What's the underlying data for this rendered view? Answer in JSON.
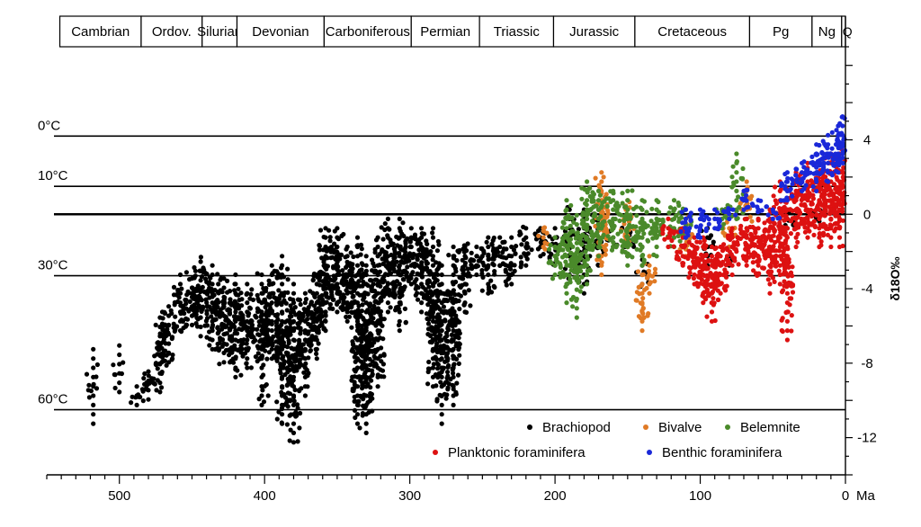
{
  "chart_data": {
    "type": "scatter",
    "xlabel_unit": "Ma",
    "ylabel": "δ18O‰",
    "xlim": [
      550,
      0
    ],
    "ylim": [
      -14,
      9
    ],
    "x_ticks": [
      500,
      400,
      300,
      200,
      100,
      0
    ],
    "y_ticks": [
      4,
      0,
      -4,
      -8,
      -12
    ],
    "periods": [
      {
        "name": "Cambrian",
        "start": 541,
        "end": 485
      },
      {
        "name": "Ordov.",
        "start": 485,
        "end": 443
      },
      {
        "name": "Silurian",
        "start": 443,
        "end": 419
      },
      {
        "name": "Devonian",
        "start": 419,
        "end": 359
      },
      {
        "name": "Carboniferous",
        "start": 359,
        "end": 299
      },
      {
        "name": "Permian",
        "start": 299,
        "end": 252
      },
      {
        "name": "Triassic",
        "start": 252,
        "end": 201
      },
      {
        "name": "Jurassic",
        "start": 201,
        "end": 145
      },
      {
        "name": "Cretaceous",
        "start": 145,
        "end": 66
      },
      {
        "name": "Pg",
        "start": 66,
        "end": 23
      },
      {
        "name": "Ng",
        "start": 23,
        "end": 2.6
      },
      {
        "name": "Q",
        "start": 2.6,
        "end": 0
      }
    ],
    "temperature_lines": [
      {
        "label": "0°C",
        "y": 4.2
      },
      {
        "label": "10°C",
        "y": 1.5
      },
      {
        "label": "",
        "y": 0
      },
      {
        "label": "30°C",
        "y": -3.3
      },
      {
        "label": "60°C",
        "y": -10.5
      }
    ],
    "series": [
      {
        "name": "Brachiopod",
        "color": "#000000",
        "bands": [
          [
            518,
            -11.5,
            -7.2,
            1
          ],
          [
            500,
            -9.8,
            -7.0,
            1
          ],
          [
            488,
            -10.5,
            -8.8,
            2
          ],
          [
            480,
            -10.2,
            -8.0,
            3
          ],
          [
            472,
            -9.8,
            -5.5,
            4
          ],
          [
            466,
            -8.2,
            -4.5,
            4
          ],
          [
            458,
            -6.5,
            -3.2,
            4
          ],
          [
            450,
            -6.2,
            -3.0,
            4
          ],
          [
            444,
            -6.8,
            -2.2,
            5
          ],
          [
            436,
            -7.5,
            -2.5,
            5
          ],
          [
            428,
            -8.2,
            -3.0,
            5
          ],
          [
            420,
            -9.0,
            -3.2,
            5
          ],
          [
            412,
            -8.5,
            -3.5,
            5
          ],
          [
            402,
            -10.5,
            -2.8,
            4
          ],
          [
            395,
            -8.0,
            -2.5,
            5
          ],
          [
            388,
            -11.5,
            -2.2,
            5
          ],
          [
            380,
            -12.5,
            -3.5,
            5
          ],
          [
            372,
            -10.0,
            -4.0,
            5
          ],
          [
            364,
            -8.0,
            -3.0,
            5
          ],
          [
            358,
            -6.5,
            -0.5,
            5
          ],
          [
            350,
            -5.5,
            -0.5,
            5
          ],
          [
            343,
            -6.0,
            -1.5,
            5
          ],
          [
            336,
            -11.5,
            -1.0,
            5
          ],
          [
            330,
            -12.0,
            -2.0,
            5
          ],
          [
            322,
            -9.5,
            -1.0,
            5
          ],
          [
            315,
            -5.5,
            0.0,
            5
          ],
          [
            307,
            -6.5,
            0.0,
            5
          ],
          [
            299,
            -4.0,
            -0.5,
            5
          ],
          [
            292,
            -5.5,
            -0.5,
            5
          ],
          [
            284,
            -9.5,
            -0.5,
            5
          ],
          [
            278,
            -11.5,
            -2.5,
            5
          ],
          [
            270,
            -10.5,
            -1.5,
            5
          ],
          [
            262,
            -5.5,
            -1.5,
            4
          ],
          [
            254,
            -3.5,
            -1.5,
            4
          ],
          [
            246,
            -4.5,
            -1.0,
            4
          ],
          [
            238,
            -3.0,
            -1.0,
            4
          ],
          [
            230,
            -4.0,
            -1.0,
            3
          ],
          [
            220,
            -3.0,
            -0.5,
            3
          ],
          [
            210,
            -2.5,
            -0.5,
            3
          ],
          [
            200,
            -3.0,
            -0.5,
            3
          ],
          [
            190,
            -3.5,
            0.5,
            3
          ],
          [
            180,
            -4.5,
            0.5,
            3
          ],
          [
            170,
            -3.0,
            0.5,
            3
          ],
          [
            160,
            -2.0,
            -0.5,
            2
          ],
          [
            150,
            -2.5,
            0.0,
            2
          ],
          [
            140,
            -4.0,
            -1.5,
            2
          ],
          [
            95,
            -3.0,
            -0.5,
            2
          ],
          [
            80,
            -3.0,
            -1.5,
            1
          ],
          [
            40,
            -1.0,
            0.5,
            2
          ],
          [
            20,
            -0.5,
            0.5,
            2
          ]
        ]
      },
      {
        "name": "Bivalve",
        "color": "#e07a25",
        "bands": [
          [
            208,
            -2.0,
            -0.5,
            2
          ],
          [
            168,
            -3.5,
            2.5,
            4
          ],
          [
            150,
            -2.0,
            1.0,
            3
          ],
          [
            140,
            -6.5,
            -3.0,
            3
          ],
          [
            135,
            -4.5,
            -2.0,
            2
          ],
          [
            110,
            -2.5,
            0.0,
            2
          ],
          [
            80,
            -2.0,
            0.5,
            2
          ],
          [
            68,
            -1.5,
            2.0,
            2
          ]
        ]
      },
      {
        "name": "Belemnite",
        "color": "#4a8a2a",
        "bands": [
          [
            200,
            -3.5,
            -1.0,
            3
          ],
          [
            192,
            -5.0,
            1.0,
            4
          ],
          [
            185,
            -5.8,
            0.0,
            4
          ],
          [
            178,
            -4.0,
            2.0,
            4
          ],
          [
            170,
            -2.5,
            1.5,
            4
          ],
          [
            160,
            -2.0,
            1.5,
            4
          ],
          [
            150,
            -3.0,
            1.5,
            4
          ],
          [
            140,
            -3.0,
            1.0,
            4
          ],
          [
            130,
            -2.5,
            1.0,
            4
          ],
          [
            118,
            -2.0,
            1.0,
            3
          ],
          [
            110,
            -1.5,
            0.5,
            3
          ],
          [
            85,
            -1.0,
            0.5,
            2
          ],
          [
            75,
            -0.5,
            3.5,
            2
          ]
        ]
      },
      {
        "name": "Planktonic foraminifera",
        "color": "#dd1111",
        "bands": [
          [
            122,
            -2.0,
            0.0,
            3
          ],
          [
            112,
            -3.0,
            -0.5,
            4
          ],
          [
            104,
            -4.0,
            -1.0,
            5
          ],
          [
            98,
            -5.0,
            -1.0,
            5
          ],
          [
            92,
            -6.0,
            -1.5,
            5
          ],
          [
            86,
            -4.5,
            -1.5,
            5
          ],
          [
            78,
            -3.5,
            -0.5,
            5
          ],
          [
            68,
            -3.0,
            0.0,
            5
          ],
          [
            60,
            -3.5,
            0.0,
            5
          ],
          [
            52,
            -4.5,
            0.5,
            5
          ],
          [
            45,
            -4.0,
            2.0,
            5
          ],
          [
            40,
            -7.0,
            0.5,
            3
          ],
          [
            34,
            -2.0,
            2.5,
            5
          ],
          [
            26,
            -1.5,
            3.0,
            5
          ],
          [
            18,
            -2.0,
            3.0,
            5
          ],
          [
            10,
            -2.0,
            3.5,
            5
          ],
          [
            4,
            -2.0,
            4.0,
            5
          ]
        ]
      },
      {
        "name": "Benthic foraminifera",
        "color": "#1a28d8",
        "bands": [
          [
            110,
            -1.5,
            0.5,
            3
          ],
          [
            100,
            -1.5,
            0.5,
            3
          ],
          [
            90,
            -1.0,
            0.5,
            3
          ],
          [
            80,
            -0.5,
            0.5,
            3
          ],
          [
            70,
            0.0,
            1.5,
            3
          ],
          [
            60,
            0.0,
            1.0,
            3
          ],
          [
            50,
            -0.5,
            0.5,
            3
          ],
          [
            40,
            0.5,
            2.5,
            4
          ],
          [
            30,
            1.0,
            3.0,
            4
          ],
          [
            20,
            1.0,
            4.0,
            4
          ],
          [
            12,
            1.5,
            4.5,
            4
          ],
          [
            5,
            2.0,
            5.0,
            4
          ],
          [
            2,
            3.0,
            5.5,
            3
          ]
        ]
      }
    ]
  },
  "legend": {
    "items": [
      {
        "label": "Brachiopod",
        "color": "#000000"
      },
      {
        "label": "Bivalve",
        "color": "#e07a25"
      },
      {
        "label": "Belemnite",
        "color": "#4a8a2a"
      },
      {
        "label": "Planktonic foraminifera",
        "color": "#dd1111"
      },
      {
        "label": "Benthic foraminifera",
        "color": "#1a28d8"
      }
    ]
  },
  "axis_unit": "Ma"
}
